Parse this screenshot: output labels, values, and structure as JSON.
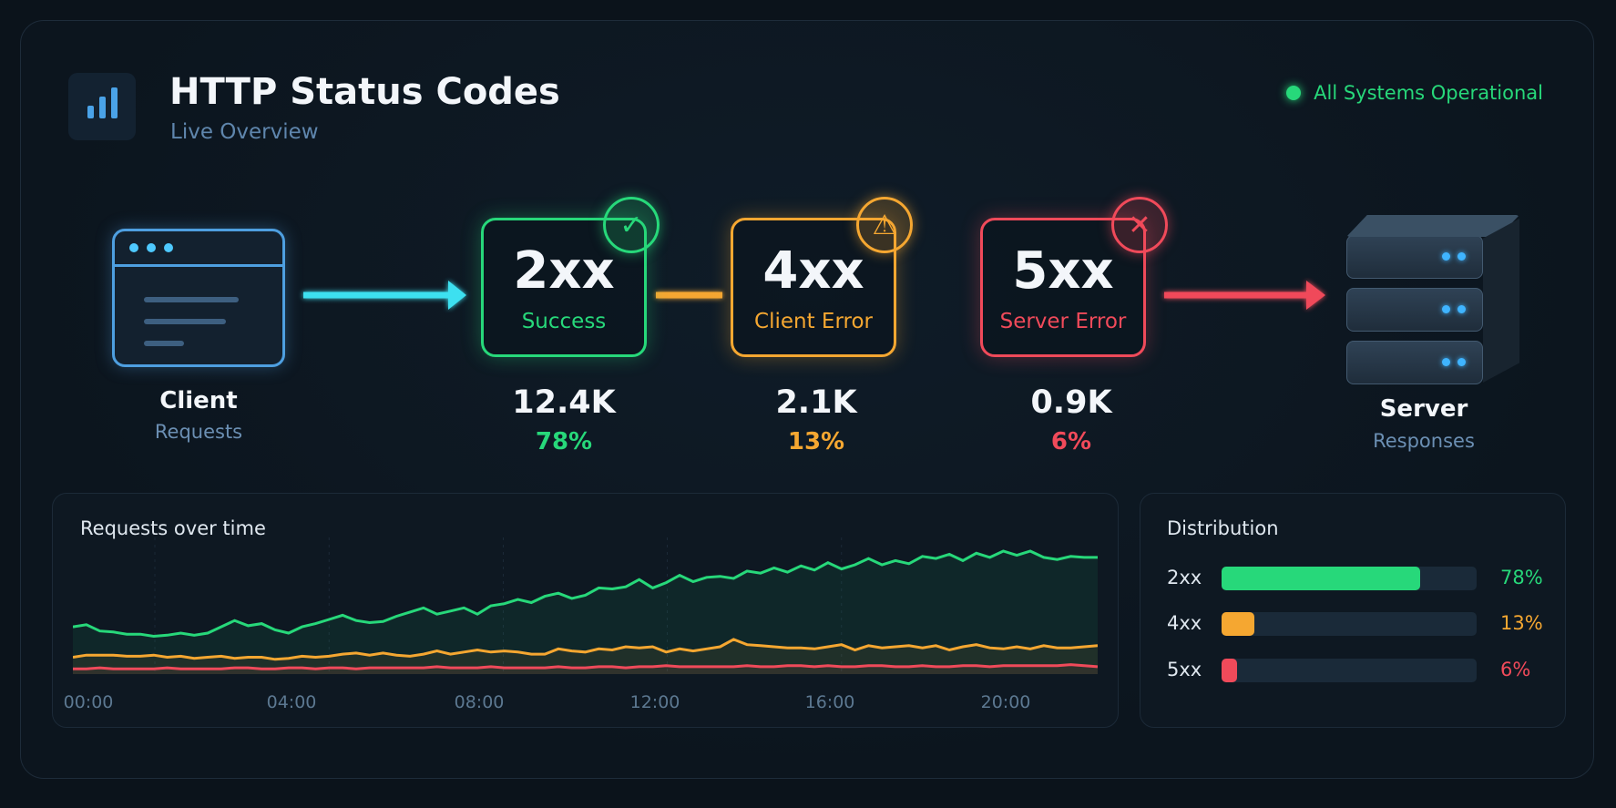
{
  "header": {
    "title": "HTTP Status Codes",
    "subtitle": "Live Overview",
    "status_text": "All Systems Operational",
    "status_color": "#27d87a"
  },
  "client": {
    "label": "Client",
    "sub": "Requests"
  },
  "server": {
    "label": "Server",
    "sub": "Responses"
  },
  "codes": [
    {
      "code": "2xx",
      "desc": "Success",
      "count": "12.4K",
      "pct": "78%",
      "color": "#27d87a",
      "icon": "check-icon"
    },
    {
      "code": "4xx",
      "desc": "Client Error",
      "count": "2.1K",
      "pct": "13%",
      "color": "#f5a731",
      "icon": "warning-icon"
    },
    {
      "code": "5xx",
      "desc": "Server Error",
      "count": "0.9K",
      "pct": "6%",
      "color": "#f04a5a",
      "icon": "x-icon"
    }
  ],
  "timeline": {
    "title": "Requests over time",
    "ticks": [
      "00:00",
      "04:00",
      "08:00",
      "12:00",
      "16:00",
      "20:00"
    ]
  },
  "distribution": {
    "title": "Distribution",
    "rows": [
      {
        "label": "2xx",
        "value": 78,
        "value_text": "78%",
        "color": "#27d87a"
      },
      {
        "label": "4xx",
        "value": 13,
        "value_text": "13%",
        "color": "#f5a731"
      },
      {
        "label": "5xx",
        "value": 6,
        "value_text": "6%",
        "color": "#f04a5a"
      }
    ]
  },
  "chart_data": {
    "type": "line",
    "title": "Requests over time",
    "x_ticks": [
      "00:00",
      "04:00",
      "08:00",
      "12:00",
      "16:00",
      "20:00"
    ],
    "series": [
      {
        "name": "2xx",
        "color": "#27d87a",
        "values": [
          45,
          47,
          41,
          40,
          38,
          38,
          36,
          37,
          39,
          37,
          39,
          45,
          51,
          46,
          48,
          42,
          39,
          45,
          48,
          52,
          56,
          51,
          49,
          50,
          55,
          59,
          63,
          57,
          60,
          63,
          57,
          65,
          67,
          71,
          68,
          74,
          77,
          72,
          75,
          82,
          81,
          83,
          90,
          82,
          87,
          94,
          88,
          92,
          93,
          91,
          98,
          96,
          101,
          97,
          103,
          99,
          106,
          100,
          104,
          110,
          104,
          108,
          105,
          112,
          110,
          114,
          108,
          115,
          111,
          117,
          113,
          117,
          111,
          109,
          112,
          111,
          111
        ]
      },
      {
        "name": "4xx",
        "color": "#f5a731",
        "values": [
          16,
          18,
          18,
          18,
          17,
          17,
          18,
          16,
          17,
          15,
          16,
          17,
          15,
          16,
          16,
          14,
          15,
          17,
          16,
          17,
          19,
          20,
          18,
          20,
          18,
          17,
          19,
          22,
          19,
          21,
          23,
          21,
          22,
          21,
          19,
          19,
          24,
          22,
          21,
          24,
          23,
          26,
          25,
          26,
          21,
          24,
          22,
          24,
          26,
          33,
          28,
          27,
          26,
          25,
          25,
          24,
          26,
          28,
          23,
          27,
          25,
          26,
          27,
          25,
          27,
          23,
          26,
          28,
          25,
          24,
          26,
          24,
          27,
          25,
          25,
          26,
          27
        ]
      },
      {
        "name": "5xx",
        "color": "#f04a5a",
        "values": [
          5,
          5,
          6,
          5,
          5,
          5,
          5,
          6,
          5,
          5,
          5,
          5,
          6,
          6,
          5,
          5,
          6,
          6,
          5,
          6,
          6,
          5,
          6,
          6,
          6,
          6,
          6,
          7,
          6,
          6,
          6,
          7,
          6,
          6,
          6,
          6,
          7,
          6,
          6,
          7,
          7,
          6,
          7,
          7,
          8,
          7,
          7,
          7,
          7,
          7,
          8,
          7,
          7,
          8,
          8,
          7,
          8,
          7,
          7,
          8,
          8,
          7,
          7,
          8,
          7,
          7,
          8,
          8,
          7,
          8,
          8,
          8,
          8,
          8,
          9,
          8,
          7
        ]
      }
    ],
    "ylim": [
      0,
      130
    ],
    "grid": true
  }
}
